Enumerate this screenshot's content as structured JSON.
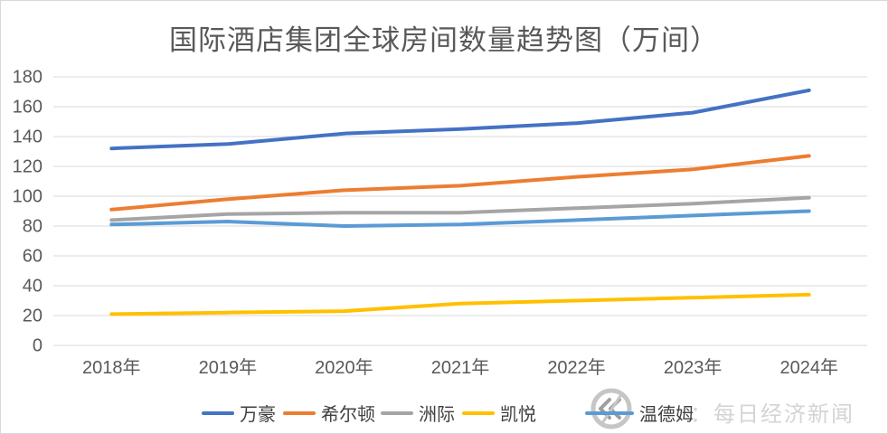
{
  "chart_data": {
    "type": "line",
    "title": "国际酒店集团全球房间数量趋势图（万间）",
    "categories": [
      "2018年",
      "2019年",
      "2020年",
      "2021年",
      "2022年",
      "2023年",
      "2024年"
    ],
    "series": [
      {
        "name": "万豪",
        "color": "#4472C4",
        "values": [
          132,
          135,
          142,
          145,
          149,
          156,
          171
        ]
      },
      {
        "name": "希尔顿",
        "color": "#ED7D31",
        "values": [
          91,
          98,
          104,
          107,
          113,
          118,
          127
        ]
      },
      {
        "name": "洲际",
        "color": "#A5A5A5",
        "values": [
          84,
          88,
          89,
          89,
          92,
          95,
          99
        ]
      },
      {
        "name": "凯悦",
        "color": "#FFC000",
        "values": [
          21,
          22,
          23,
          28,
          30,
          32,
          34
        ]
      },
      {
        "name": "温德姆",
        "color": "#5B9BD5",
        "values": [
          81,
          83,
          80,
          81,
          84,
          87,
          90
        ]
      }
    ],
    "xlabel": "",
    "ylabel": "",
    "ylim": [
      0,
      180
    ],
    "yticks": [
      0,
      20,
      40,
      60,
      80,
      100,
      120,
      140,
      160,
      180
    ],
    "grid": true,
    "gridline_color": "#d9d9d9",
    "axis_label_color": "#595959",
    "legend_position": "bottom"
  },
  "watermark": {
    "source_text": "：每日经济新闻",
    "color": "#d4d4d4"
  }
}
